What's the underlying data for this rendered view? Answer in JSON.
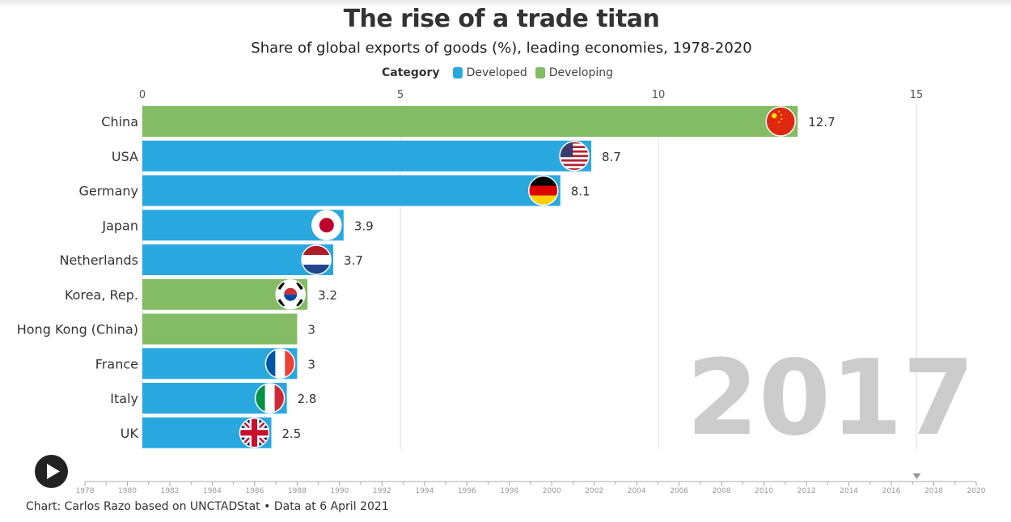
{
  "header": {
    "title": "The rise of a trade titan",
    "subtitle": "Share of global exports of goods (%), leading economies, 1978-2020"
  },
  "legend": {
    "title": "Category",
    "items": [
      {
        "label": "Developed",
        "color": "#29a8e0"
      },
      {
        "label": "Developing",
        "color": "#84bb65"
      }
    ]
  },
  "colors": {
    "developed": "#29a8e0",
    "developing": "#84bb65",
    "grid": "#dddddd",
    "year": "#cccccc"
  },
  "chart_data": {
    "type": "bar",
    "orientation": "horizontal",
    "current_year": "2017",
    "xlim": [
      0,
      15
    ],
    "x_ticks": [
      0,
      5,
      10,
      15
    ],
    "grid": true,
    "bars": [
      {
        "label": "China",
        "value": 12.7,
        "value_label": "12.7",
        "category": "Developing",
        "flag": "china-flag-icon"
      },
      {
        "label": "USA",
        "value": 8.7,
        "value_label": "8.7",
        "category": "Developed",
        "flag": "usa-flag-icon"
      },
      {
        "label": "Germany",
        "value": 8.1,
        "value_label": "8.1",
        "category": "Developed",
        "flag": "germany-flag-icon"
      },
      {
        "label": "Japan",
        "value": 3.9,
        "value_label": "3.9",
        "category": "Developed",
        "flag": "japan-flag-icon"
      },
      {
        "label": "Netherlands",
        "value": 3.7,
        "value_label": "3.7",
        "category": "Developed",
        "flag": "netherlands-flag-icon"
      },
      {
        "label": "Korea, Rep.",
        "value": 3.2,
        "value_label": "3.2",
        "category": "Developing",
        "flag": "korea-flag-icon"
      },
      {
        "label": "Hong Kong (China)",
        "value": 3.0,
        "value_label": "3",
        "category": "Developing",
        "flag": null
      },
      {
        "label": "France",
        "value": 3.0,
        "value_label": "3",
        "category": "Developed",
        "flag": "france-flag-icon"
      },
      {
        "label": "Italy",
        "value": 2.8,
        "value_label": "2.8",
        "category": "Developed",
        "flag": "italy-flag-icon"
      },
      {
        "label": "UK",
        "value": 2.5,
        "value_label": "2.5",
        "category": "Developed",
        "flag": "uk-flag-icon"
      }
    ]
  },
  "timeline": {
    "start": 1978,
    "end": 2020,
    "labels": [
      "1978",
      "1980",
      "1982",
      "1984",
      "1986",
      "1988",
      "1990",
      "1992",
      "1994",
      "1996",
      "1998",
      "2000",
      "2002",
      "2004",
      "2006",
      "2008",
      "2010",
      "2012",
      "2014",
      "2016",
      "2018",
      "2020"
    ],
    "current": 2017.2
  },
  "controls": {
    "play_icon": "play-icon"
  },
  "footer": {
    "source": "Chart: Carlos Razo based on UNCTADStat • Data at 6 April 2021"
  }
}
